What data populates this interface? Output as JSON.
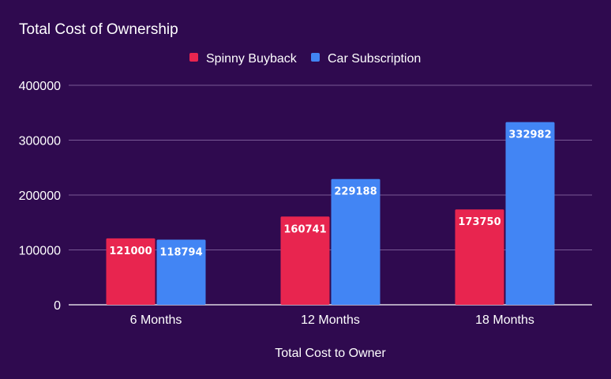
{
  "chart_data": {
    "type": "bar",
    "title": "Total Cost of Ownership",
    "categories": [
      "6 Months",
      "12 Months",
      "18 Months"
    ],
    "series": [
      {
        "name": "Spinny Buyback",
        "values": [
          121000,
          160741,
          173750
        ],
        "color": "#e8254f"
      },
      {
        "name": "Car Subscription",
        "values": [
          118794,
          229188,
          332982
        ],
        "color": "#4285f4"
      }
    ],
    "xlabel": "Total Cost to Owner",
    "ylabel": "",
    "ylim": [
      0,
      400000
    ],
    "yticks": [
      "0",
      "100000",
      "200000",
      "300000",
      "400000"
    ],
    "grid": true,
    "legend": "top-center",
    "background": "#2f0a4f",
    "gridColor": "#7a5a96"
  }
}
